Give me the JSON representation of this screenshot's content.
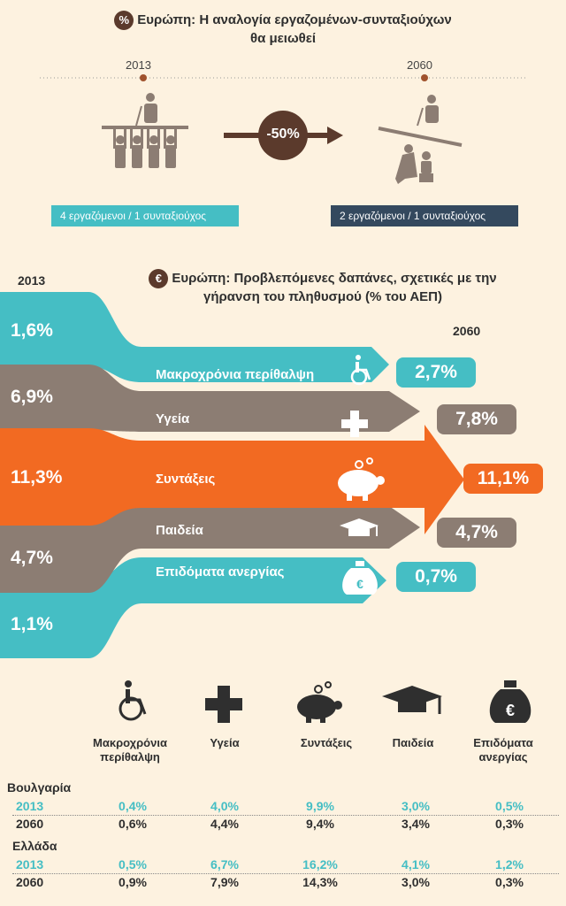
{
  "top": {
    "title_line1": "Ευρώπη: Η αναλογία εργαζομένων-συνταξιούχων",
    "title_line2": "θα μειωθεί",
    "badge": "%",
    "year_left": "2013",
    "year_right": "2060",
    "change": "-50%",
    "left_ratio": "4 εργαζόμενοι / 1 συνταξιούχος",
    "right_ratio": "2 εργαζόμενοι / 1 συνταξιούχος"
  },
  "spending": {
    "title_line1": "Ευρώπη: Προβλεπόμενες δαπάνες, σχετικές με την",
    "title_line2": "γήρανση του πληθυσμού (% του ΑΕΠ)",
    "badge": "€",
    "year_left": "2013",
    "year_right": "2060",
    "bands": [
      {
        "label": "Μακροχρόνια περίθαλψη",
        "v2013": "1,6%",
        "v2060": "2,7%",
        "color": "#45bec4",
        "icon": "wheelchair-icon"
      },
      {
        "label": "Υγεία",
        "v2013": "6,9%",
        "v2060": "7,8%",
        "color": "#8c7d73",
        "icon": "medical-cross-icon"
      },
      {
        "label": "Συντάξεις",
        "v2013": "11,3%",
        "v2060": "11,1%",
        "color": "#f26a22",
        "icon": "piggy-bank-icon"
      },
      {
        "label": "Παιδεία",
        "v2013": "4,7%",
        "v2060": "4,7%",
        "color": "#8c7d73",
        "icon": "graduation-cap-icon"
      },
      {
        "label": "Επιδόματα ανεργίας",
        "v2013": "1,1%",
        "v2060": "0,7%",
        "color": "#45bec4",
        "icon": "money-bag-icon"
      }
    ]
  },
  "table": {
    "columns": [
      {
        "line1": "Μακροχρόνια",
        "line2": "περίθαλψη",
        "icon": "wheelchair-icon"
      },
      {
        "line1": "Υγεία",
        "line2": "",
        "icon": "medical-cross-icon"
      },
      {
        "line1": "Συντάξεις",
        "line2": "",
        "icon": "piggy-bank-icon"
      },
      {
        "line1": "Παιδεία",
        "line2": "",
        "icon": "graduation-cap-icon"
      },
      {
        "line1": "Επιδόματα",
        "line2": "ανεργίας",
        "icon": "money-bag-icon"
      }
    ],
    "countries": [
      {
        "name": "Βουλγαρία",
        "rows": [
          {
            "year": "2013",
            "values": [
              "0,4%",
              "4,0%",
              "9,9%",
              "3,0%",
              "0,5%"
            ]
          },
          {
            "year": "2060",
            "values": [
              "0,6%",
              "4,4%",
              "9,4%",
              "3,4%",
              "0,3%"
            ]
          }
        ]
      },
      {
        "name": "Ελλάδα",
        "rows": [
          {
            "year": "2013",
            "values": [
              "0,5%",
              "6,7%",
              "16,2%",
              "4,1%",
              "1,2%"
            ]
          },
          {
            "year": "2060",
            "values": [
              "0,9%",
              "7,9%",
              "14,3%",
              "3,0%",
              "0,3%"
            ]
          }
        ]
      }
    ]
  },
  "colors": {
    "teal": "#45bec4",
    "taupe": "#8c7d73",
    "orange": "#f26a22",
    "brown": "#5b3a2c",
    "navy": "#34495e"
  }
}
